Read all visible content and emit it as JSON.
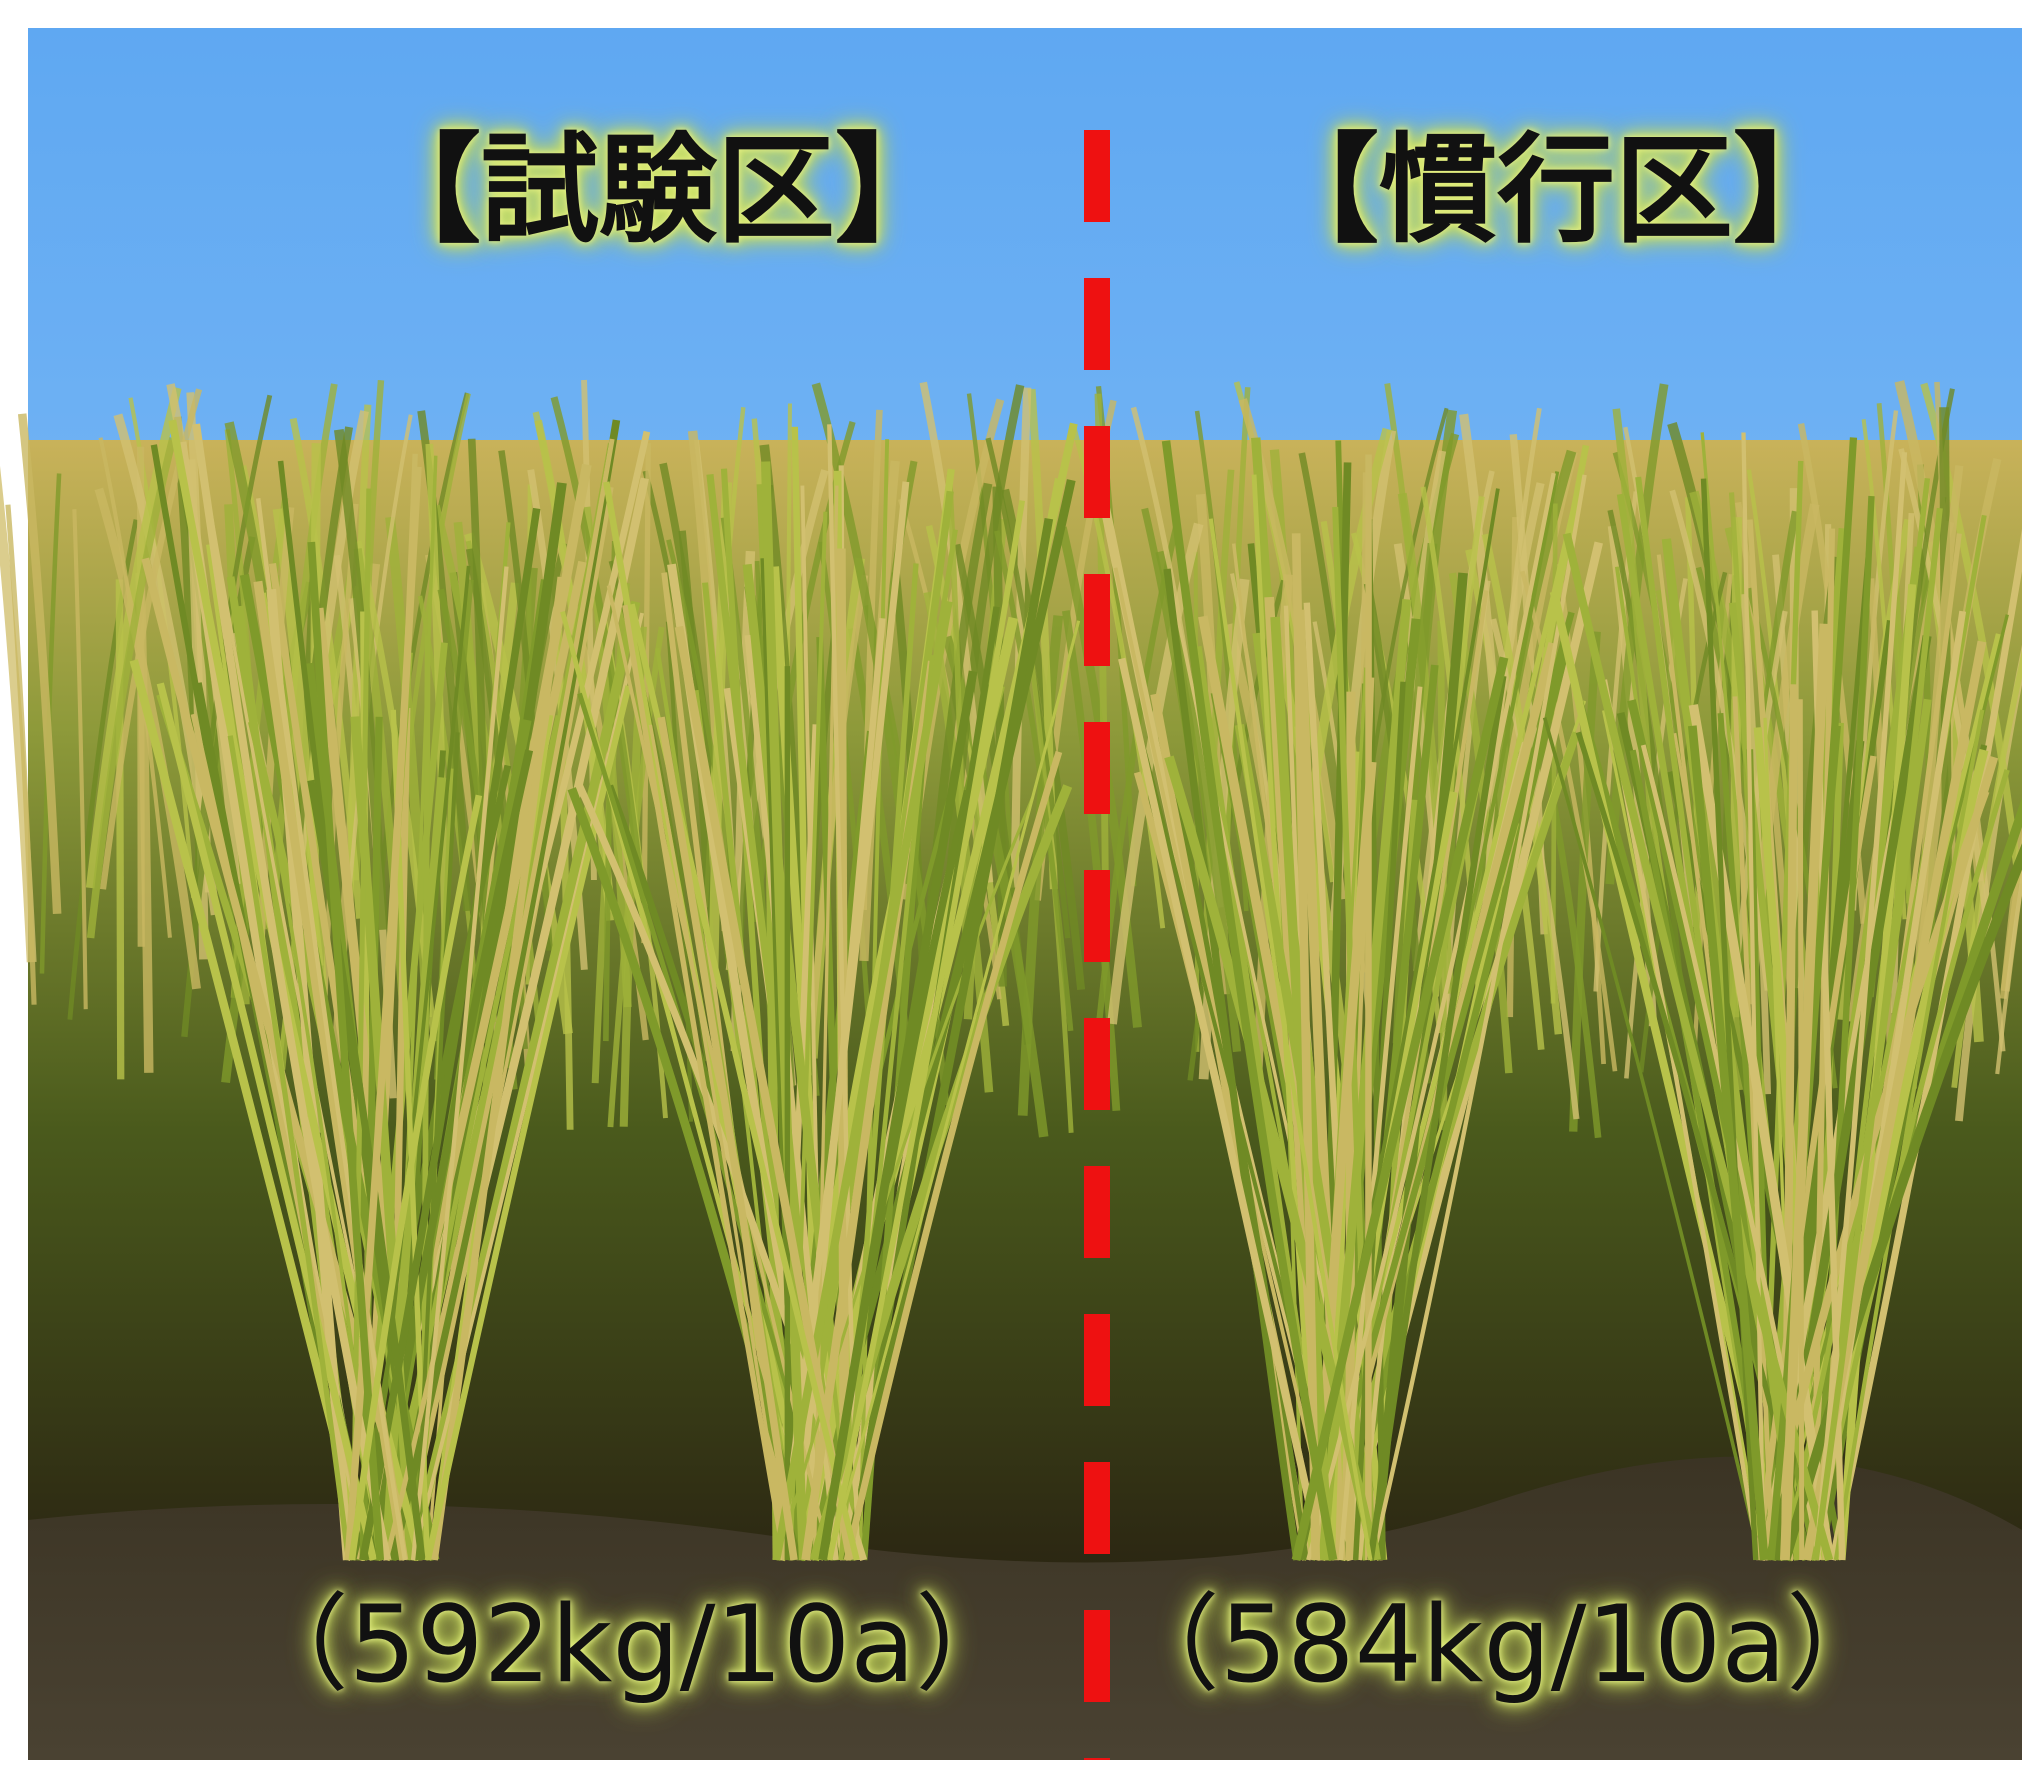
{
  "labels": {
    "test_plot": "【試験区】",
    "conventional_plot": "【慣行区】",
    "test_yield": "（592kg/10a）",
    "conventional_yield": "（584kg/10a）"
  }
}
